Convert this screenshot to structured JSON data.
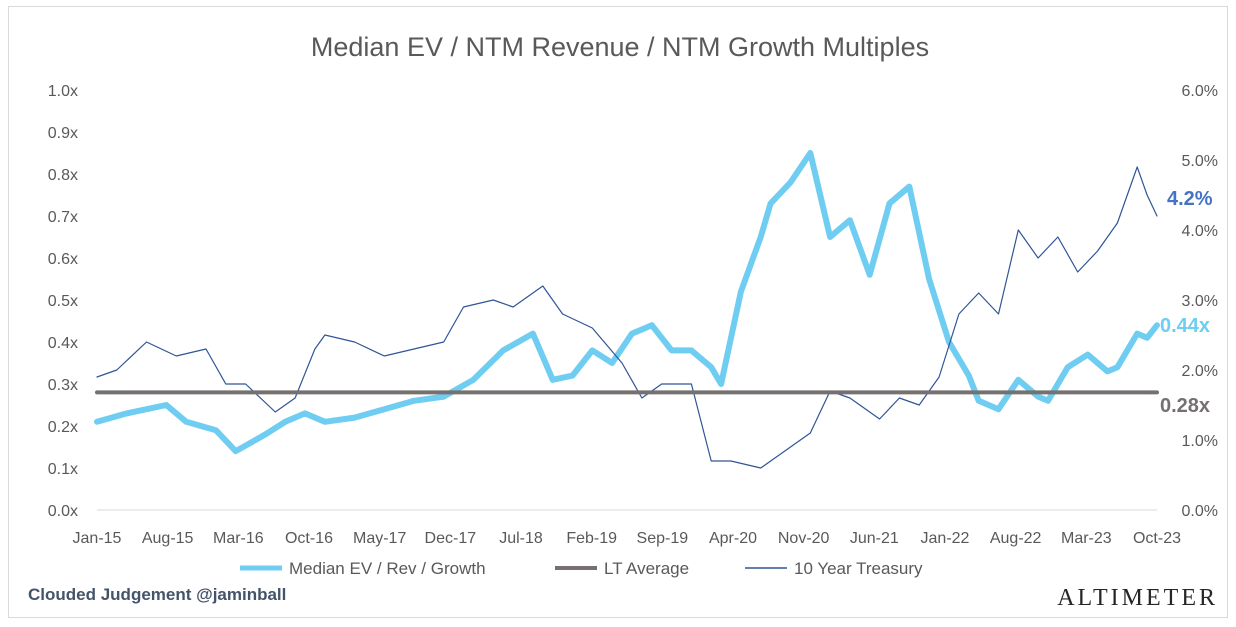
{
  "chart_data": {
    "type": "line",
    "title": "Median EV / NTM Revenue / NTM Growth Multiples",
    "x_ticks": [
      "Jan-15",
      "Aug-15",
      "Mar-16",
      "Oct-16",
      "May-17",
      "Dec-17",
      "Jul-18",
      "Feb-19",
      "Sep-19",
      "Apr-20",
      "Nov-20",
      "Jun-21",
      "Jan-22",
      "Aug-22",
      "Mar-23",
      "Oct-23"
    ],
    "y_left": {
      "ticks": [
        "0.0x",
        "0.1x",
        "0.2x",
        "0.3x",
        "0.4x",
        "0.5x",
        "0.6x",
        "0.7x",
        "0.8x",
        "0.9x",
        "1.0x"
      ],
      "min": 0,
      "max": 1.0
    },
    "y_right": {
      "ticks": [
        "0.0%",
        "1.0%",
        "2.0%",
        "3.0%",
        "4.0%",
        "5.0%",
        "6.0%"
      ],
      "min": 0,
      "max": 6.0
    },
    "grid": false,
    "legend_position": "bottom",
    "series": [
      {
        "name": "Median EV / Rev / Growth",
        "axis": "left",
        "color": "#6fcdf2",
        "x": [
          "2015-01",
          "2015-04",
          "2015-08",
          "2015-10",
          "2016-01",
          "2016-03",
          "2016-06",
          "2016-08",
          "2016-10",
          "2016-12",
          "2017-03",
          "2017-06",
          "2017-09",
          "2017-12",
          "2018-03",
          "2018-06",
          "2018-09",
          "2018-11",
          "2019-01",
          "2019-03",
          "2019-05",
          "2019-07",
          "2019-09",
          "2019-11",
          "2020-01",
          "2020-03",
          "2020-04",
          "2020-06",
          "2020-08",
          "2020-09",
          "2020-11",
          "2021-01",
          "2021-02",
          "2021-03",
          "2021-05",
          "2021-07",
          "2021-09",
          "2021-11",
          "2022-01",
          "2022-03",
          "2022-05",
          "2022-06",
          "2022-08",
          "2022-10",
          "2022-12",
          "2023-01",
          "2023-03",
          "2023-05",
          "2023-07",
          "2023-08",
          "2023-10",
          "2023-11",
          "2023-12"
        ],
        "values": [
          0.21,
          0.23,
          0.25,
          0.21,
          0.19,
          0.14,
          0.18,
          0.21,
          0.23,
          0.21,
          0.22,
          0.24,
          0.26,
          0.27,
          0.31,
          0.38,
          0.42,
          0.31,
          0.32,
          0.38,
          0.35,
          0.42,
          0.44,
          0.38,
          0.38,
          0.34,
          0.3,
          0.52,
          0.65,
          0.73,
          0.78,
          0.85,
          0.75,
          0.65,
          0.69,
          0.56,
          0.73,
          0.77,
          0.55,
          0.4,
          0.32,
          0.26,
          0.24,
          0.31,
          0.27,
          0.26,
          0.34,
          0.37,
          0.33,
          0.34,
          0.42,
          0.41,
          0.44
        ]
      },
      {
        "name": "LT Average",
        "axis": "left",
        "color": "#767171",
        "x": [
          "2015-01",
          "2023-12"
        ],
        "values": [
          0.28,
          0.28
        ]
      },
      {
        "name": "10 Year Treasury",
        "axis": "right",
        "color": "#2f5597",
        "x": [
          "2015-01",
          "2015-03",
          "2015-06",
          "2015-09",
          "2015-12",
          "2016-02",
          "2016-04",
          "2016-07",
          "2016-09",
          "2016-11",
          "2016-12",
          "2017-03",
          "2017-06",
          "2017-09",
          "2017-12",
          "2018-02",
          "2018-05",
          "2018-07",
          "2018-10",
          "2018-12",
          "2019-03",
          "2019-06",
          "2019-08",
          "2019-10",
          "2020-01",
          "2020-03",
          "2020-05",
          "2020-08",
          "2020-10",
          "2021-01",
          "2021-03",
          "2021-05",
          "2021-08",
          "2021-10",
          "2021-12",
          "2022-02",
          "2022-04",
          "2022-06",
          "2022-08",
          "2022-10",
          "2022-12",
          "2023-02",
          "2023-04",
          "2023-06",
          "2023-08",
          "2023-10",
          "2023-11",
          "2023-12"
        ],
        "values": [
          1.9,
          2.0,
          2.4,
          2.2,
          2.3,
          1.8,
          1.8,
          1.4,
          1.6,
          2.3,
          2.5,
          2.4,
          2.2,
          2.3,
          2.4,
          2.9,
          3.0,
          2.9,
          3.2,
          2.8,
          2.6,
          2.1,
          1.6,
          1.8,
          1.8,
          0.7,
          0.7,
          0.6,
          0.8,
          1.1,
          1.7,
          1.6,
          1.3,
          1.6,
          1.5,
          1.9,
          2.8,
          3.1,
          2.8,
          4.0,
          3.6,
          3.9,
          3.4,
          3.7,
          4.1,
          4.9,
          4.5,
          4.2
        ]
      }
    ],
    "callouts": {
      "treasury": "4.2%",
      "multiple": "0.44x",
      "average": "0.28x"
    }
  },
  "footer": {
    "credit": "Clouded Judgement @jaminball",
    "brand": "ALTIMETER"
  }
}
